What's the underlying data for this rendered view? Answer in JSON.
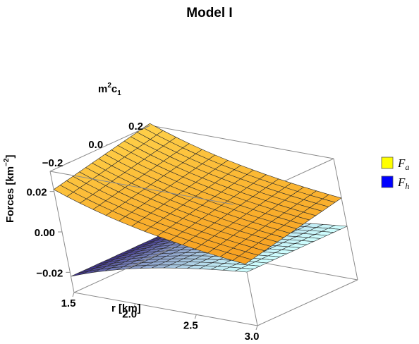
{
  "chart_data": {
    "type": "surface3d",
    "title": "Model I",
    "axes": {
      "x": {
        "label": "r [km]",
        "range": [
          1.5,
          3.0
        ],
        "ticks": [
          1.5,
          2.0,
          2.5,
          3.0
        ],
        "tick_labels": [
          "1.5",
          "2.0",
          "2.5",
          "3.0"
        ]
      },
      "y": {
        "label_base": "m",
        "label_sup": "2",
        "label_tail": "c",
        "label_sub": "1",
        "range": [
          -0.3,
          0.2
        ],
        "ticks": [
          -0.2,
          0.0,
          0.2
        ],
        "tick_labels": [
          "−0.2",
          "0.0",
          "0.2"
        ]
      },
      "z": {
        "label_base": "Forces [km",
        "label_sup": "−2",
        "label_tail": "]",
        "range": [
          -0.03,
          0.03
        ],
        "ticks": [
          -0.02,
          0.0,
          0.02
        ],
        "tick_labels": [
          "−0.02",
          "0.00",
          "0.02"
        ]
      }
    },
    "series": [
      {
        "legend_base": "F",
        "legend_sub": "a",
        "color": "#ffff00",
        "surface_colors": [
          "#f7a020",
          "#ffd24a"
        ],
        "corner_values": {
          "r1.5_c-0.3": 0.021,
          "r1.5_c0.2": 0.031,
          "r3.0_c-0.3": 0.0005,
          "r3.0_c0.2": 0.0105
        }
      },
      {
        "legend_base": "F",
        "legend_sub": "h",
        "color": "#0000ff",
        "surface_colors": [
          "#3a2a8a",
          "#cfffff"
        ],
        "corner_values": {
          "r1.5_c-0.3": -0.022,
          "r1.5_c0.2": -0.022,
          "r3.0_c-0.3": -0.0035,
          "r3.0_c0.2": -0.0035
        }
      }
    ],
    "legend_position": "right",
    "grid": false
  }
}
